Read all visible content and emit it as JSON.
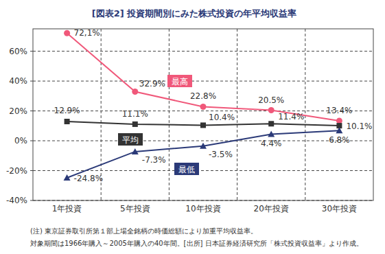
{
  "chart_data": {
    "type": "line",
    "title": "[図表2] 投資期間別にみた株式投資の年平均収益率",
    "categories": [
      "1年投資",
      "5年投資",
      "10年投資",
      "20年投資",
      "30年投資"
    ],
    "series": [
      {
        "name": "最高",
        "color": "#f0587a",
        "marker": "circle",
        "values": [
          72.1,
          32.9,
          22.8,
          20.5,
          13.4
        ],
        "value_labels": [
          "72,1%",
          "32.9%",
          "22.8%",
          "20.5%",
          "13.4%"
        ]
      },
      {
        "name": "平均",
        "color": "#333333",
        "marker": "square",
        "values": [
          12.9,
          11.1,
          10.4,
          11.4,
          10.1
        ],
        "value_labels": [
          "12.9%",
          "11.1%",
          "10.4%",
          "11.4%",
          "10.1%"
        ]
      },
      {
        "name": "最低",
        "color": "#2b3a78",
        "marker": "triangle",
        "values": [
          -24.8,
          -7.3,
          -3.5,
          4.4,
          6.8
        ],
        "value_labels": [
          "-24.8%",
          "-7.3%",
          "-3.5%",
          "4.4%",
          "6.8%"
        ]
      }
    ],
    "ylim": [
      -40,
      75
    ],
    "yticks": [
      {
        "value": -40,
        "label": "-40%"
      },
      {
        "value": -20,
        "label": "-20%"
      },
      {
        "value": 0,
        "label": "0%"
      },
      {
        "value": 20,
        "label": "20%"
      },
      {
        "value": 40,
        "label": "40%"
      },
      {
        "value": 60,
        "label": "60%"
      }
    ],
    "grid": true,
    "data_labels": true,
    "notes": [
      "(注) 東京証券取引所第１部上場全銘柄の時価総額により加重平均収益率。",
      "対象期間は1966年購入～2005年購入の40年間。[出所] 日本証券経済研究所「株式投資収益率」より作成。"
    ]
  }
}
